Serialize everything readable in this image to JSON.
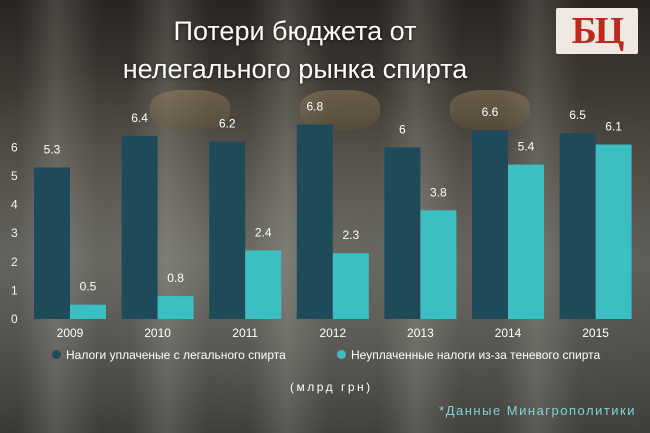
{
  "title_lines": [
    "Потери бюджета от",
    "нелегального рынка спирта"
  ],
  "logo": {
    "text": "БЦ"
  },
  "unit": "(млрд грн)",
  "source": "*Данные Минагрополитики",
  "colors": {
    "legal": "#1f4a5a",
    "shadow": "#3bbfc2",
    "source": "#7fd4d6",
    "logo": "#c1281d"
  },
  "chart_data": {
    "type": "bar",
    "categories": [
      "2009",
      "2010",
      "2011",
      "2012",
      "2013",
      "2014",
      "2015"
    ],
    "series": [
      {
        "name": "Налоги уплаченые с легального спирта",
        "values": [
          5.3,
          6.4,
          6.2,
          6.8,
          6,
          6.6,
          6.5
        ],
        "labels": [
          "5.3",
          "6.4",
          "6.2",
          "6.8",
          "6",
          "6.6",
          "6.5"
        ]
      },
      {
        "name": "Неуплаченные налоги из-за теневого спирта",
        "values": [
          0.5,
          0.8,
          2.4,
          2.3,
          3.8,
          5.4,
          6.1
        ],
        "labels": [
          "0.5",
          "0.8",
          "2.4",
          "2.3",
          "3.8",
          "5.4",
          "6.1"
        ]
      }
    ],
    "yticks": [
      "0",
      "1",
      "2",
      "3",
      "4",
      "5",
      "6"
    ],
    "ylim": [
      0,
      7
    ],
    "legend_position": "bottom"
  }
}
